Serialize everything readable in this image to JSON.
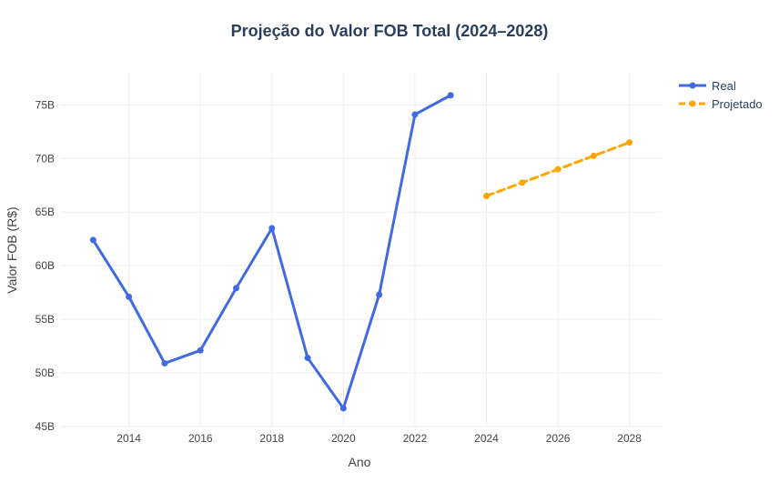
{
  "chart_data": {
    "type": "line",
    "title": "Projeção do Valor FOB Total (2024–2028)",
    "xlabel": "Ano",
    "ylabel": "Valor FOB (R$)",
    "xlim": [
      2012.1,
      2028.9
    ],
    "ylim": [
      45,
      78
    ],
    "x_ticks": [
      2014,
      2016,
      2018,
      2020,
      2022,
      2024,
      2026,
      2028
    ],
    "y_ticks": [
      45,
      50,
      55,
      60,
      65,
      70,
      75
    ],
    "y_tick_labels": [
      "45B",
      "50B",
      "55B",
      "60B",
      "65B",
      "70B",
      "75B"
    ],
    "grid": true,
    "legend_position": "top-right",
    "series": [
      {
        "name": "Real",
        "style": "solid",
        "color": "#4169E1",
        "x": [
          2013,
          2014,
          2015,
          2016,
          2017,
          2018,
          2019,
          2020,
          2021,
          2022,
          2023
        ],
        "y": [
          62.4,
          57.1,
          50.9,
          52.1,
          57.9,
          63.5,
          51.4,
          46.7,
          57.3,
          74.1,
          75.9
        ]
      },
      {
        "name": "Projetado",
        "style": "dashed",
        "color": "#FFA500",
        "x": [
          2024,
          2025,
          2026,
          2027,
          2028
        ],
        "y": [
          66.5,
          67.75,
          69.0,
          70.25,
          71.5
        ]
      }
    ]
  },
  "colors": {
    "background": "#ffffff",
    "grid": "#eeeeee",
    "text": "#2a3f5f",
    "axis_text": "#444444"
  }
}
